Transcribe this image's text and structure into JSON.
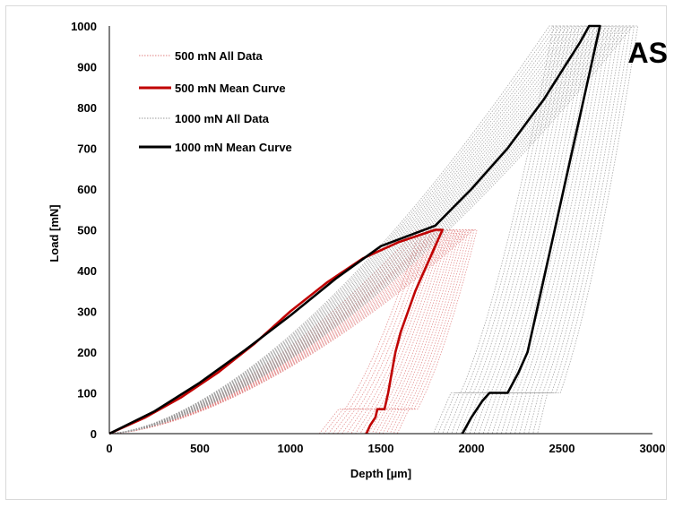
{
  "chart_data": {
    "type": "line",
    "panel_label": "AS",
    "xlabel": "Depth [µm]",
    "ylabel": "Load [mN]",
    "xlim": [
      0,
      3000
    ],
    "ylim": [
      0,
      1000
    ],
    "x_ticks": [
      0,
      500,
      1000,
      1500,
      2000,
      2500,
      3000
    ],
    "y_ticks": [
      0,
      100,
      200,
      300,
      400,
      500,
      600,
      700,
      800,
      900,
      1000
    ],
    "grid": false,
    "legend_position": "top-left",
    "series": [
      {
        "name": "500 mN All Data",
        "color": "#e08080",
        "style": "dotted",
        "max_load": 500,
        "loading_depth_at_max": [
          1700,
          1720,
          1740,
          1760,
          1780,
          1800,
          1815,
          1830,
          1845,
          1860,
          1875,
          1890,
          1905,
          1920,
          1935,
          1950,
          1965,
          1980,
          1995,
          2010
        ],
        "residual_depth": [
          1160,
          1185,
          1210,
          1235,
          1260,
          1285,
          1310,
          1335,
          1360,
          1385,
          1410,
          1430,
          1450,
          1470,
          1490,
          1510,
          1530,
          1550,
          1570,
          1590
        ],
        "hold_load": 60
      },
      {
        "name": "500 mN Mean Curve",
        "color": "#c00000",
        "style": "solid",
        "loading": [
          [
            0,
            0
          ],
          [
            200,
            40
          ],
          [
            400,
            90
          ],
          [
            600,
            150
          ],
          [
            800,
            220
          ],
          [
            1000,
            300
          ],
          [
            1200,
            370
          ],
          [
            1400,
            430
          ],
          [
            1600,
            470
          ],
          [
            1800,
            500
          ]
        ],
        "hold": [
          [
            1800,
            500
          ],
          [
            1840,
            500
          ]
        ],
        "unloading": [
          [
            1840,
            500
          ],
          [
            1790,
            450
          ],
          [
            1740,
            400
          ],
          [
            1690,
            350
          ],
          [
            1650,
            300
          ],
          [
            1610,
            250
          ],
          [
            1580,
            200
          ],
          [
            1560,
            150
          ],
          [
            1540,
            100
          ],
          [
            1520,
            60
          ],
          [
            1480,
            60
          ],
          [
            1470,
            40
          ],
          [
            1440,
            20
          ],
          [
            1420,
            0
          ]
        ]
      },
      {
        "name": "1000 mN All Data",
        "color": "#999999",
        "style": "dotted",
        "max_load": 1000,
        "loading_depth_at_max": [
          2430,
          2450,
          2470,
          2490,
          2510,
          2530,
          2550,
          2570,
          2590,
          2610,
          2630,
          2650,
          2670,
          2690,
          2710,
          2730,
          2750,
          2770,
          2790,
          2810,
          2830,
          2850,
          2870,
          2890
        ],
        "residual_depth": [
          1790,
          1815,
          1840,
          1865,
          1890,
          1915,
          1940,
          1965,
          1990,
          2015,
          2040,
          2065,
          2090,
          2115,
          2140,
          2165,
          2190,
          2215,
          2240,
          2265,
          2290,
          2315,
          2340,
          2365
        ],
        "hold_load": 100
      },
      {
        "name": "1000 mN Mean Curve",
        "color": "#000000",
        "style": "solid",
        "loading": [
          [
            0,
            0
          ],
          [
            250,
            55
          ],
          [
            500,
            125
          ],
          [
            750,
            205
          ],
          [
            1000,
            290
          ],
          [
            1250,
            380
          ],
          [
            1500,
            460
          ],
          [
            1800,
            510
          ],
          [
            2000,
            600
          ],
          [
            2200,
            700
          ],
          [
            2400,
            820
          ],
          [
            2600,
            960
          ],
          [
            2650,
            1000
          ]
        ],
        "hold": [
          [
            2650,
            1000
          ],
          [
            2710,
            1000
          ]
        ],
        "unloading": [
          [
            2710,
            1000
          ],
          [
            2660,
            900
          ],
          [
            2610,
            800
          ],
          [
            2560,
            700
          ],
          [
            2510,
            600
          ],
          [
            2460,
            500
          ],
          [
            2410,
            400
          ],
          [
            2360,
            300
          ],
          [
            2310,
            200
          ],
          [
            2260,
            150
          ],
          [
            2200,
            100
          ],
          [
            2100,
            100
          ],
          [
            2060,
            80
          ],
          [
            2000,
            40
          ],
          [
            1950,
            0
          ]
        ]
      }
    ]
  }
}
